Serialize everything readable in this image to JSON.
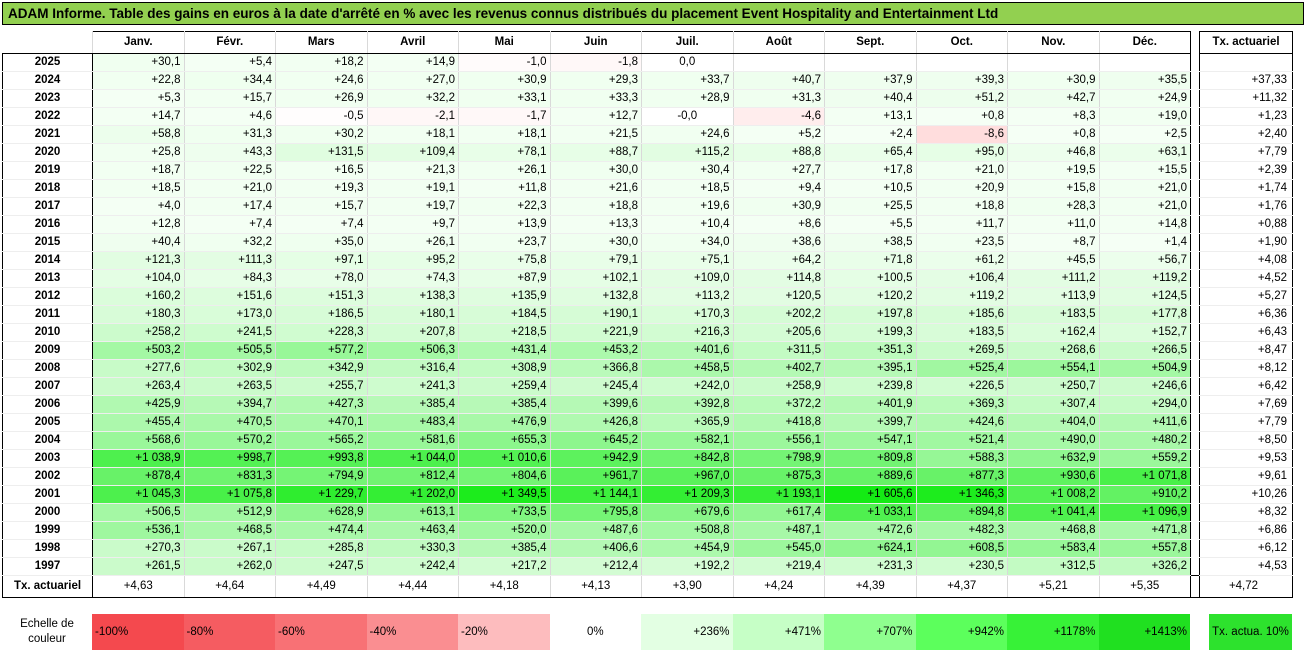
{
  "title": "ADAM Informe. Table des gains en euros à la date d'arrêté en % avec les revenus connus distribués du placement Event Hospitality and Entertainment Ltd",
  "columns": [
    "Janv.",
    "Févr.",
    "Mars",
    "Avril",
    "Mai",
    "Juin",
    "Juil.",
    "Août",
    "Sept.",
    "Oct.",
    "Nov.",
    "Déc."
  ],
  "tx_header": "Tx. actuariel",
  "footer_label": "Tx. actuariel",
  "footer_values": [
    "+4,63",
    "+4,64",
    "+4,49",
    "+4,44",
    "+4,18",
    "+4,13",
    "+3,90",
    "+4,24",
    "+4,39",
    "+4,37",
    "+5,21",
    "+5,35"
  ],
  "footer_tx": "+4,72",
  "rows": [
    {
      "year": "2025",
      "values": [
        "+30,1",
        "+5,4",
        "+18,2",
        "+14,9",
        "-1,0",
        "-1,8",
        "0,0",
        "",
        "",
        "",
        "",
        ""
      ],
      "tx": ""
    },
    {
      "year": "2024",
      "values": [
        "+22,8",
        "+34,4",
        "+24,6",
        "+27,0",
        "+30,9",
        "+29,3",
        "+33,7",
        "+40,7",
        "+37,9",
        "+39,3",
        "+30,9",
        "+35,5"
      ],
      "tx": "+37,33"
    },
    {
      "year": "2023",
      "values": [
        "+5,3",
        "+15,7",
        "+26,9",
        "+32,2",
        "+33,1",
        "+33,3",
        "+28,9",
        "+31,3",
        "+40,4",
        "+51,2",
        "+42,7",
        "+24,9"
      ],
      "tx": "+11,32"
    },
    {
      "year": "2022",
      "values": [
        "+14,7",
        "+4,6",
        "-0,5",
        "-2,1",
        "-1,7",
        "+12,7",
        "-0,0",
        "-4,6",
        "+13,1",
        "+0,8",
        "+8,3",
        "+19,0"
      ],
      "tx": "+1,23"
    },
    {
      "year": "2021",
      "values": [
        "+58,8",
        "+31,3",
        "+30,2",
        "+18,1",
        "+18,1",
        "+21,5",
        "+24,6",
        "+5,2",
        "+2,4",
        "-8,6",
        "+0,8",
        "+2,5"
      ],
      "tx": "+2,40"
    },
    {
      "year": "2020",
      "values": [
        "+25,8",
        "+43,3",
        "+131,5",
        "+109,4",
        "+78,1",
        "+88,7",
        "+115,2",
        "+88,8",
        "+65,4",
        "+95,0",
        "+46,8",
        "+63,1"
      ],
      "tx": "+7,79"
    },
    {
      "year": "2019",
      "values": [
        "+18,7",
        "+22,5",
        "+16,5",
        "+21,3",
        "+26,1",
        "+30,0",
        "+30,4",
        "+27,7",
        "+17,8",
        "+21,0",
        "+19,5",
        "+15,5"
      ],
      "tx": "+2,39"
    },
    {
      "year": "2018",
      "values": [
        "+18,5",
        "+21,0",
        "+19,3",
        "+19,1",
        "+11,8",
        "+21,6",
        "+18,5",
        "+9,4",
        "+10,5",
        "+20,9",
        "+15,8",
        "+21,0"
      ],
      "tx": "+1,74"
    },
    {
      "year": "2017",
      "values": [
        "+4,0",
        "+17,4",
        "+15,7",
        "+19,7",
        "+22,3",
        "+18,8",
        "+19,6",
        "+30,9",
        "+25,5",
        "+18,8",
        "+28,3",
        "+21,0"
      ],
      "tx": "+1,76"
    },
    {
      "year": "2016",
      "values": [
        "+12,8",
        "+7,4",
        "+7,4",
        "+9,7",
        "+13,9",
        "+13,3",
        "+10,4",
        "+8,6",
        "+5,5",
        "+11,7",
        "+11,0",
        "+14,8"
      ],
      "tx": "+0,88"
    },
    {
      "year": "2015",
      "values": [
        "+40,4",
        "+32,2",
        "+35,0",
        "+26,1",
        "+23,7",
        "+30,0",
        "+34,0",
        "+38,6",
        "+38,5",
        "+23,5",
        "+8,7",
        "+1,4"
      ],
      "tx": "+1,90"
    },
    {
      "year": "2014",
      "values": [
        "+121,3",
        "+111,3",
        "+97,1",
        "+95,2",
        "+75,8",
        "+79,1",
        "+75,1",
        "+64,2",
        "+71,8",
        "+61,2",
        "+45,5",
        "+56,7"
      ],
      "tx": "+4,08"
    },
    {
      "year": "2013",
      "values": [
        "+104,0",
        "+84,3",
        "+78,0",
        "+74,3",
        "+87,9",
        "+102,1",
        "+109,0",
        "+114,8",
        "+100,5",
        "+106,4",
        "+111,2",
        "+119,2"
      ],
      "tx": "+4,52"
    },
    {
      "year": "2012",
      "values": [
        "+160,2",
        "+151,6",
        "+151,3",
        "+138,3",
        "+135,9",
        "+132,8",
        "+113,2",
        "+120,5",
        "+120,2",
        "+119,2",
        "+113,9",
        "+124,5"
      ],
      "tx": "+5,27"
    },
    {
      "year": "2011",
      "values": [
        "+180,3",
        "+173,0",
        "+186,5",
        "+180,1",
        "+184,5",
        "+190,1",
        "+170,3",
        "+202,2",
        "+197,8",
        "+185,6",
        "+183,5",
        "+177,8"
      ],
      "tx": "+6,36"
    },
    {
      "year": "2010",
      "values": [
        "+258,2",
        "+241,5",
        "+228,3",
        "+207,8",
        "+218,5",
        "+221,9",
        "+216,3",
        "+205,6",
        "+199,3",
        "+183,5",
        "+162,4",
        "+152,7"
      ],
      "tx": "+6,43"
    },
    {
      "year": "2009",
      "values": [
        "+503,2",
        "+505,5",
        "+577,2",
        "+506,3",
        "+431,4",
        "+453,2",
        "+401,6",
        "+311,5",
        "+351,3",
        "+269,5",
        "+268,6",
        "+266,5"
      ],
      "tx": "+8,47"
    },
    {
      "year": "2008",
      "values": [
        "+277,6",
        "+302,9",
        "+342,9",
        "+316,4",
        "+308,9",
        "+366,8",
        "+458,5",
        "+402,7",
        "+395,1",
        "+525,4",
        "+554,1",
        "+504,9"
      ],
      "tx": "+8,12"
    },
    {
      "year": "2007",
      "values": [
        "+263,4",
        "+263,5",
        "+255,7",
        "+241,3",
        "+259,4",
        "+245,4",
        "+242,0",
        "+258,9",
        "+239,8",
        "+226,5",
        "+250,7",
        "+246,6"
      ],
      "tx": "+6,42"
    },
    {
      "year": "2006",
      "values": [
        "+425,9",
        "+394,7",
        "+427,3",
        "+385,4",
        "+385,4",
        "+399,6",
        "+392,8",
        "+372,2",
        "+401,9",
        "+369,3",
        "+307,4",
        "+294,0"
      ],
      "tx": "+7,69"
    },
    {
      "year": "2005",
      "values": [
        "+455,4",
        "+470,5",
        "+470,1",
        "+483,4",
        "+476,9",
        "+426,8",
        "+365,9",
        "+418,8",
        "+399,7",
        "+424,6",
        "+404,0",
        "+411,6"
      ],
      "tx": "+7,79"
    },
    {
      "year": "2004",
      "values": [
        "+568,6",
        "+570,2",
        "+565,2",
        "+581,6",
        "+655,3",
        "+645,2",
        "+582,1",
        "+556,1",
        "+547,1",
        "+521,4",
        "+490,0",
        "+480,2"
      ],
      "tx": "+8,50"
    },
    {
      "year": "2003",
      "values": [
        "+1 038,9",
        "+998,7",
        "+993,8",
        "+1 044,0",
        "+1 010,6",
        "+942,9",
        "+842,8",
        "+798,9",
        "+809,8",
        "+588,3",
        "+632,9",
        "+559,2"
      ],
      "tx": "+9,53"
    },
    {
      "year": "2002",
      "values": [
        "+878,4",
        "+831,3",
        "+794,9",
        "+812,4",
        "+804,6",
        "+961,7",
        "+967,0",
        "+875,3",
        "+889,6",
        "+877,3",
        "+930,6",
        "+1 071,8"
      ],
      "tx": "+9,61"
    },
    {
      "year": "2001",
      "values": [
        "+1 045,3",
        "+1 075,8",
        "+1 229,7",
        "+1 202,0",
        "+1 349,5",
        "+1 144,1",
        "+1 209,3",
        "+1 193,1",
        "+1 605,6",
        "+1 346,3",
        "+1 008,2",
        "+910,2"
      ],
      "tx": "+10,26"
    },
    {
      "year": "2000",
      "values": [
        "+506,5",
        "+512,9",
        "+628,9",
        "+613,1",
        "+733,5",
        "+795,8",
        "+679,6",
        "+617,4",
        "+1 033,1",
        "+894,8",
        "+1 041,4",
        "+1 096,9"
      ],
      "tx": "+8,32"
    },
    {
      "year": "1999",
      "values": [
        "+536,1",
        "+468,5",
        "+474,4",
        "+463,4",
        "+520,0",
        "+487,6",
        "+508,8",
        "+487,1",
        "+472,6",
        "+482,3",
        "+468,8",
        "+471,8"
      ],
      "tx": "+6,86"
    },
    {
      "year": "1998",
      "values": [
        "+270,3",
        "+267,1",
        "+285,8",
        "+330,3",
        "+385,4",
        "+406,6",
        "+454,9",
        "+545,0",
        "+624,1",
        "+608,5",
        "+583,4",
        "+557,8"
      ],
      "tx": "+6,12"
    },
    {
      "year": "1997",
      "values": [
        "+261,5",
        "+262,0",
        "+247,5",
        "+242,4",
        "+217,2",
        "+212,4",
        "+192,2",
        "+219,4",
        "+231,3",
        "+230,5",
        "+312,5",
        "+326,2"
      ],
      "tx": "+4,53"
    }
  ],
  "legend": {
    "label": "Echelle de couleur",
    "items": [
      {
        "text": "-100%",
        "color": "#f4494e"
      },
      {
        "text": "-80%",
        "color": "#f55c61"
      },
      {
        "text": "-60%",
        "color": "#f87175"
      },
      {
        "text": "-40%",
        "color": "#fa8e91"
      },
      {
        "text": "-20%",
        "color": "#fdbcbe"
      },
      {
        "text": "0%",
        "color": "#ffffff"
      },
      {
        "text": "+236%",
        "color": "#e3ffe3"
      },
      {
        "text": "+471%",
        "color": "#c6ffc6"
      },
      {
        "text": "+707%",
        "color": "#8fff8f"
      },
      {
        "text": "+942%",
        "color": "#5cff5c"
      },
      {
        "text": "+1178%",
        "color": "#37f237"
      },
      {
        "text": "+1413%",
        "color": "#20e020"
      }
    ],
    "tx_label": "Tx. actua. 10%",
    "tx_color": "#2de22d"
  }
}
